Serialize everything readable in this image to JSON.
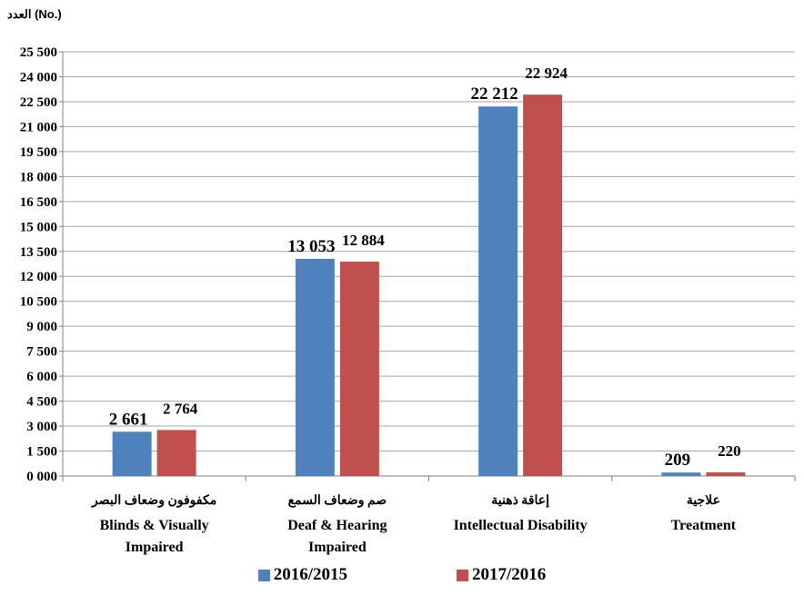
{
  "chart_data": {
    "type": "bar",
    "unit_label": "العدد (No.)",
    "yticks": [
      "0 000",
      "1 500",
      "3 000",
      "4 500",
      "6 000",
      "7 500",
      "9 000",
      "10 500",
      "12 000",
      "13 500",
      "15 000",
      "16 500",
      "18 000",
      "19 500",
      "21 000",
      "22 500",
      "24 000",
      "25 500"
    ],
    "ylim": [
      0,
      25500
    ],
    "ystep": 1500,
    "categories": [
      {
        "ar": "مكفوفون وضعاف البصر",
        "en": [
          "Blinds & Visually",
          "Impaired"
        ]
      },
      {
        "ar": "صم وضعاف السمع",
        "en": [
          "Deaf & Hearing",
          "Impaired"
        ]
      },
      {
        "ar": "إعاقة ذهنية",
        "en": [
          "Intellectual Disability"
        ]
      },
      {
        "ar": "علاجية",
        "en": [
          "Treatment"
        ]
      }
    ],
    "series": [
      {
        "name": "2016/2015",
        "color": "#4f81bd",
        "values": [
          2661,
          13053,
          22212,
          209
        ],
        "labels": [
          "2 661",
          "13 053",
          "22 212",
          "209"
        ]
      },
      {
        "name": "2017/2016",
        "color": "#c0504d",
        "values": [
          2764,
          12884,
          22924,
          220
        ],
        "labels": [
          "2 764",
          "12 884",
          "22 924",
          "220"
        ]
      }
    ],
    "grid": true,
    "legend_position": "bottom"
  }
}
